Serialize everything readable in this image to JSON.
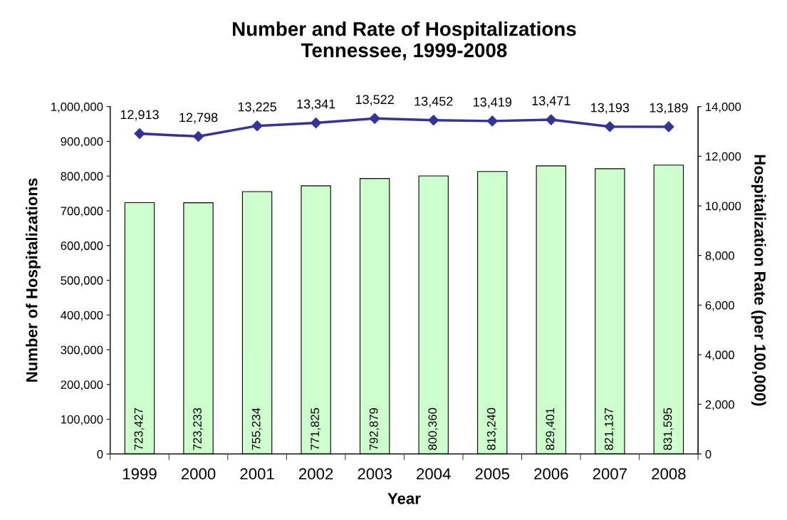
{
  "chart_data": {
    "type": "bar",
    "title": "Number and Rate of Hospitalizations\nTennessee, 1999-2008",
    "xlabel": "Year",
    "ylabel": "Number of Hospitalizations",
    "y2label": "Hospitalization Rate (per 100,000)",
    "categories": [
      "1999",
      "2000",
      "2001",
      "2002",
      "2003",
      "2004",
      "2005",
      "2006",
      "2007",
      "2008"
    ],
    "series": [
      {
        "color": "#ccffcc",
        "values": [
          723427,
          723233,
          755234,
          771825,
          792879,
          800360,
          813240,
          829401,
          821137,
          831595
        ],
        "value_labels": [
          "723,427",
          "723,233",
          "755,234",
          "771,825",
          "792,879",
          "800,360",
          "813,240",
          "829,401",
          "821,137",
          "831,595"
        ]
      },
      {
        "type": "line",
        "axis": "y2",
        "color": "#333399",
        "marker": "diamond",
        "line_style": "solid",
        "values": [
          12913,
          12798,
          13225,
          13341,
          13522,
          13452,
          13419,
          13471,
          13193,
          13189
        ],
        "value_labels": [
          "12,913",
          "12,798",
          "13,225",
          "13,341",
          "13,522",
          "13,452",
          "13,419",
          "13,471",
          "13,193",
          "13,189"
        ]
      }
    ],
    "ylim": [
      0,
      1000000
    ],
    "yticks": [
      {
        "value": 0,
        "label": "0"
      },
      {
        "value": 100000,
        "label": "100,000"
      },
      {
        "value": 200000,
        "label": "200,000"
      },
      {
        "value": 300000,
        "label": "300,000"
      },
      {
        "value": 400000,
        "label": "400,000"
      },
      {
        "value": 500000,
        "label": "500,000"
      },
      {
        "value": 600000,
        "label": "600,000"
      },
      {
        "value": 700000,
        "label": "700,000"
      },
      {
        "value": 800000,
        "label": "800,000"
      },
      {
        "value": 900000,
        "label": "900,000"
      },
      {
        "value": 1000000,
        "label": "1,000,000"
      }
    ],
    "y2lim": [
      0,
      14000
    ],
    "y2ticks": [
      {
        "value": 0,
        "label": "0"
      },
      {
        "value": 2000,
        "label": "2,000"
      },
      {
        "value": 4000,
        "label": "4,000"
      },
      {
        "value": 6000,
        "label": "6,000"
      },
      {
        "value": 8000,
        "label": "8,000"
      },
      {
        "value": 10000,
        "label": "10,000"
      },
      {
        "value": 12000,
        "label": "12,000"
      },
      {
        "value": 14000,
        "label": "14,000"
      }
    ],
    "grid": false,
    "legend": false
  }
}
